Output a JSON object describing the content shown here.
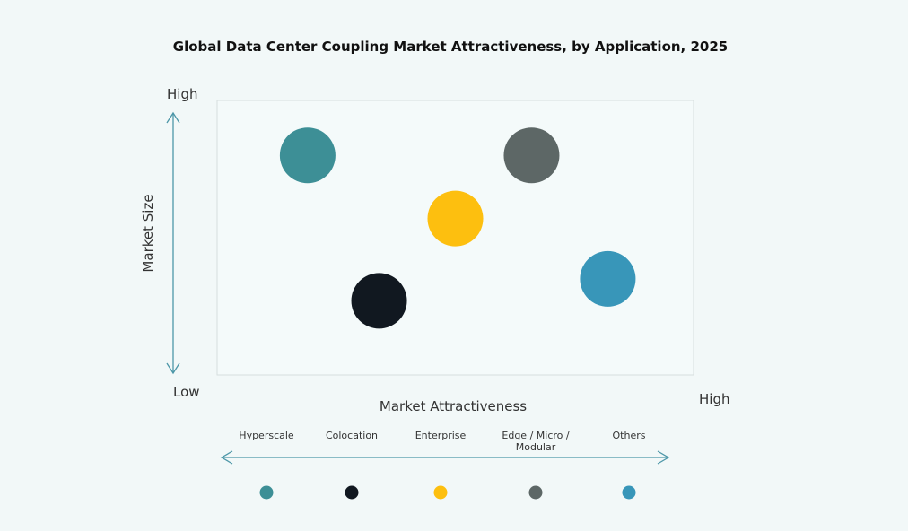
{
  "chart_data": {
    "type": "scatter",
    "title": "Global Data Center Coupling Market Attractiveness,  by Application, 2025",
    "xlabel": "Market Attractiveness",
    "ylabel": "Market Size",
    "x_low_label": "Low",
    "x_high_label": "High",
    "y_high_label": "High",
    "y_low_label": "Low",
    "xlim": [
      0,
      100
    ],
    "ylim": [
      0,
      100
    ],
    "grid": false,
    "legend_position": "bottom",
    "series": [
      {
        "name": "Hyperscale",
        "x": 19,
        "y": 80,
        "color": "#3d8f96"
      },
      {
        "name": "Colocation",
        "x": 34,
        "y": 27,
        "color": "#111820"
      },
      {
        "name": "Enterprise",
        "x": 50,
        "y": 57,
        "color": "#fdbf0f"
      },
      {
        "name": "Edge / Micro / Modular",
        "x": 66,
        "y": 80,
        "color": "#5d6766"
      },
      {
        "name": "Others",
        "x": 82,
        "y": 35,
        "color": "#3896b9"
      }
    ]
  },
  "colors": {
    "arrow": "#4d97a8",
    "background": "#f2f8f8"
  }
}
